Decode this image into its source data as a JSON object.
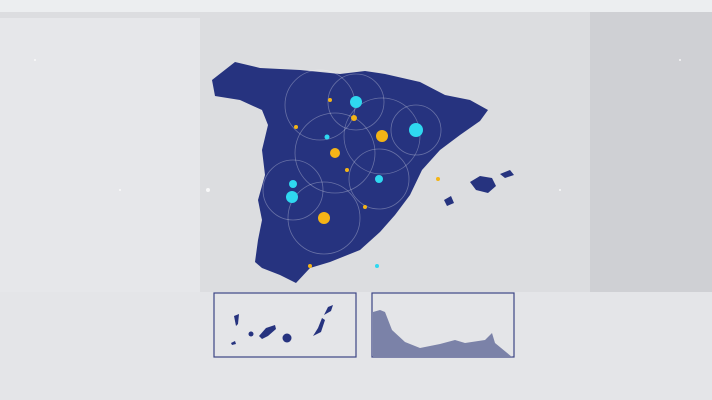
{
  "colors": {
    "background": "#dcdde0",
    "land": "#26337f",
    "inset_border": "#3c4585",
    "inset_land_light": "#7b82a8",
    "marker_cyan": "#2fd8f0",
    "marker_yellow": "#f4b416"
  },
  "map": {
    "region": "spain-map",
    "insets": [
      "canary-islands-inset",
      "north-africa-coast-inset"
    ]
  }
}
